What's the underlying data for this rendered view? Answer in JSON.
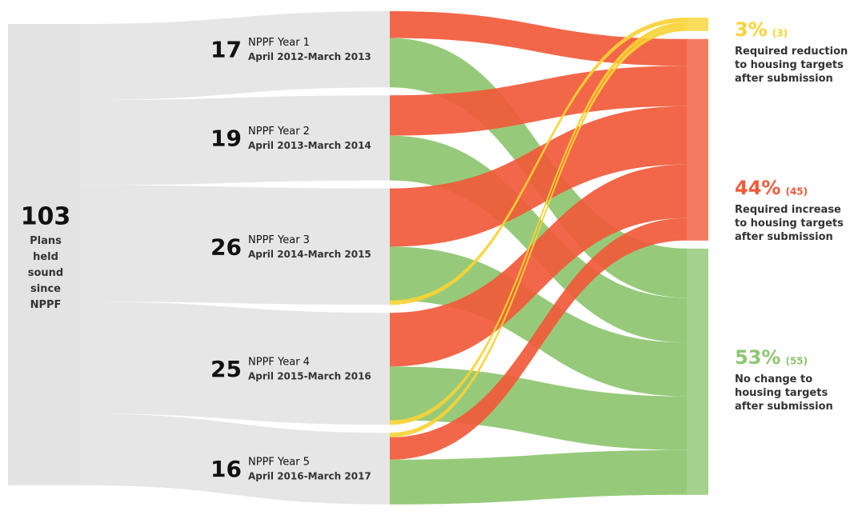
{
  "chart_data": {
    "type": "sankey",
    "source": {
      "value": 103,
      "label": "Plans held sound since NPPF"
    },
    "flow_color": "#e6e6e6",
    "years": [
      {
        "value": 17,
        "name": "NPPF Year 1",
        "period": "April 2012-March 2013"
      },
      {
        "value": 19,
        "name": "NPPF Year 2",
        "period": "April 2013-March 2014"
      },
      {
        "value": 26,
        "name": "NPPF Year 3",
        "period": "April 2014-March 2015"
      },
      {
        "value": 25,
        "name": "NPPF Year 4",
        "period": "April 2015-March 2016"
      },
      {
        "value": 16,
        "name": "NPPF Year 5",
        "period": "April 2016-March 2017"
      }
    ],
    "outcomes": [
      {
        "share": {
          "value": 3,
          "label": "3%"
        },
        "value": 3,
        "value_label": "(3)",
        "name": "Required reduction to housing targets after submission",
        "color": "#f8d335"
      },
      {
        "share": {
          "value": 44,
          "label": "44%"
        },
        "value": 45,
        "value_label": "(45)",
        "name": "Required increase to housing targets after submission",
        "color": "#f15a3a"
      },
      {
        "share": {
          "value": 53,
          "label": "53%"
        },
        "value": 55,
        "value_label": "(55)",
        "name": "No change to housing targets after submission",
        "color": "#8dc66f"
      }
    ],
    "links": [
      {
        "from": 0,
        "to": 1,
        "value": 6
      },
      {
        "from": 0,
        "to": 2,
        "value": 11
      },
      {
        "from": 1,
        "to": 1,
        "value": 9
      },
      {
        "from": 1,
        "to": 2,
        "value": 10
      },
      {
        "from": 2,
        "to": 1,
        "value": 13
      },
      {
        "from": 2,
        "to": 2,
        "value": 12
      },
      {
        "from": 2,
        "to": 0,
        "value": 1
      },
      {
        "from": 3,
        "to": 1,
        "value": 12
      },
      {
        "from": 3,
        "to": 2,
        "value": 12
      },
      {
        "from": 3,
        "to": 0,
        "value": 1
      },
      {
        "from": 4,
        "to": 0,
        "value": 1
      },
      {
        "from": 4,
        "to": 1,
        "value": 5
      },
      {
        "from": 4,
        "to": 2,
        "value": 10
      }
    ]
  }
}
